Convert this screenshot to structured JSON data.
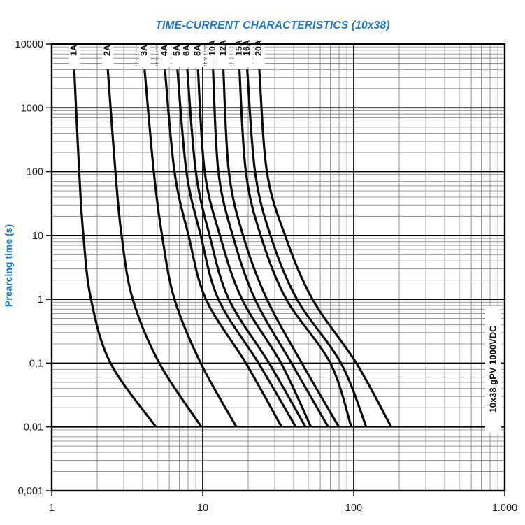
{
  "page": {
    "background": "#ffffff"
  },
  "header": {
    "title": "TIME-CURRENT CHARACTERISTICS (10x38)",
    "title_color": "#1a78cc"
  },
  "chart": {
    "y_axis_title": "Prearcing time (s)",
    "y_axis_title_color": "#1a78cc",
    "side_label": "10x38 gPV 1000VDC",
    "curve_color": "#0a0a0a",
    "grid_minor_color": "#8c8c8c",
    "grid_major_color": "#000000",
    "text_color": "#1a1a1a",
    "x_ticks": [
      {
        "label": "1",
        "value": 1
      },
      {
        "label": "10",
        "value": 10
      },
      {
        "label": "100",
        "value": 100
      },
      {
        "label": "1.000",
        "value": 1000
      }
    ],
    "y_ticks": [
      {
        "label": "10000",
        "value": 10000
      },
      {
        "label": "1000",
        "value": 1000
      },
      {
        "label": "100",
        "value": 100
      },
      {
        "label": "10",
        "value": 10
      },
      {
        "label": "1",
        "value": 1
      },
      {
        "label": "0,1",
        "value": 0.1
      },
      {
        "label": "0,01",
        "value": 0.01
      },
      {
        "label": "0,001",
        "value": 0.001
      }
    ],
    "dotted_leader_labels": [
      "3A",
      "4A",
      "10A",
      "12A",
      "15A"
    ]
  },
  "chart_data": {
    "type": "line",
    "title": "TIME-CURRENT CHARACTERISTICS (10x38)",
    "xlabel": "",
    "ylabel": "Prearcing time (s)",
    "xscale": "log",
    "yscale": "log",
    "xlim": [
      1,
      1000
    ],
    "ylim": [
      0.001,
      10000
    ],
    "grid": "on",
    "times_s": [
      4000,
      100,
      10,
      1,
      0.1,
      0.01
    ],
    "series": [
      {
        "name": "1A",
        "current_A": [
          1.41,
          1.52,
          1.62,
          1.82,
          2.45,
          4.9
        ]
      },
      {
        "name": "2A",
        "current_A": [
          2.35,
          2.64,
          2.9,
          3.44,
          5.16,
          9.8
        ]
      },
      {
        "name": "3A",
        "current_A": [
          4.12,
          4.74,
          5.38,
          6.5,
          9.7,
          16.7
        ]
      },
      {
        "name": "4A",
        "current_A": [
          5.62,
          6.5,
          8.05,
          10.5,
          19.3,
          33.3
        ]
      },
      {
        "name": "5A",
        "current_A": [
          6.8,
          7.8,
          9.7,
          12.7,
          23.4,
          41.3
        ]
      },
      {
        "name": "6A",
        "current_A": [
          7.9,
          9.0,
          11.1,
          14.9,
          27.5,
          47.9
        ]
      },
      {
        "name": "8A",
        "current_A": [
          9.3,
          10.3,
          13.0,
          18.2,
          33.0,
          52.1
        ]
      },
      {
        "name": "10A",
        "current_A": [
          11.7,
          12.7,
          15.8,
          22.2,
          38.7,
          67.7
        ]
      },
      {
        "name": "12A",
        "current_A": [
          13.7,
          14.9,
          18.5,
          26.6,
          45.3,
          79.7
        ]
      },
      {
        "name": "15A",
        "current_A": [
          17.5,
          19.3,
          24.2,
          35.8,
          70.0,
          96.3
        ]
      },
      {
        "name": "16A",
        "current_A": [
          19.7,
          22.2,
          28.1,
          42.1,
          82.3,
          121
        ]
      },
      {
        "name": "20A",
        "current_A": [
          23.7,
          26.6,
          35.1,
          53.3,
          104,
          177
        ]
      }
    ]
  }
}
